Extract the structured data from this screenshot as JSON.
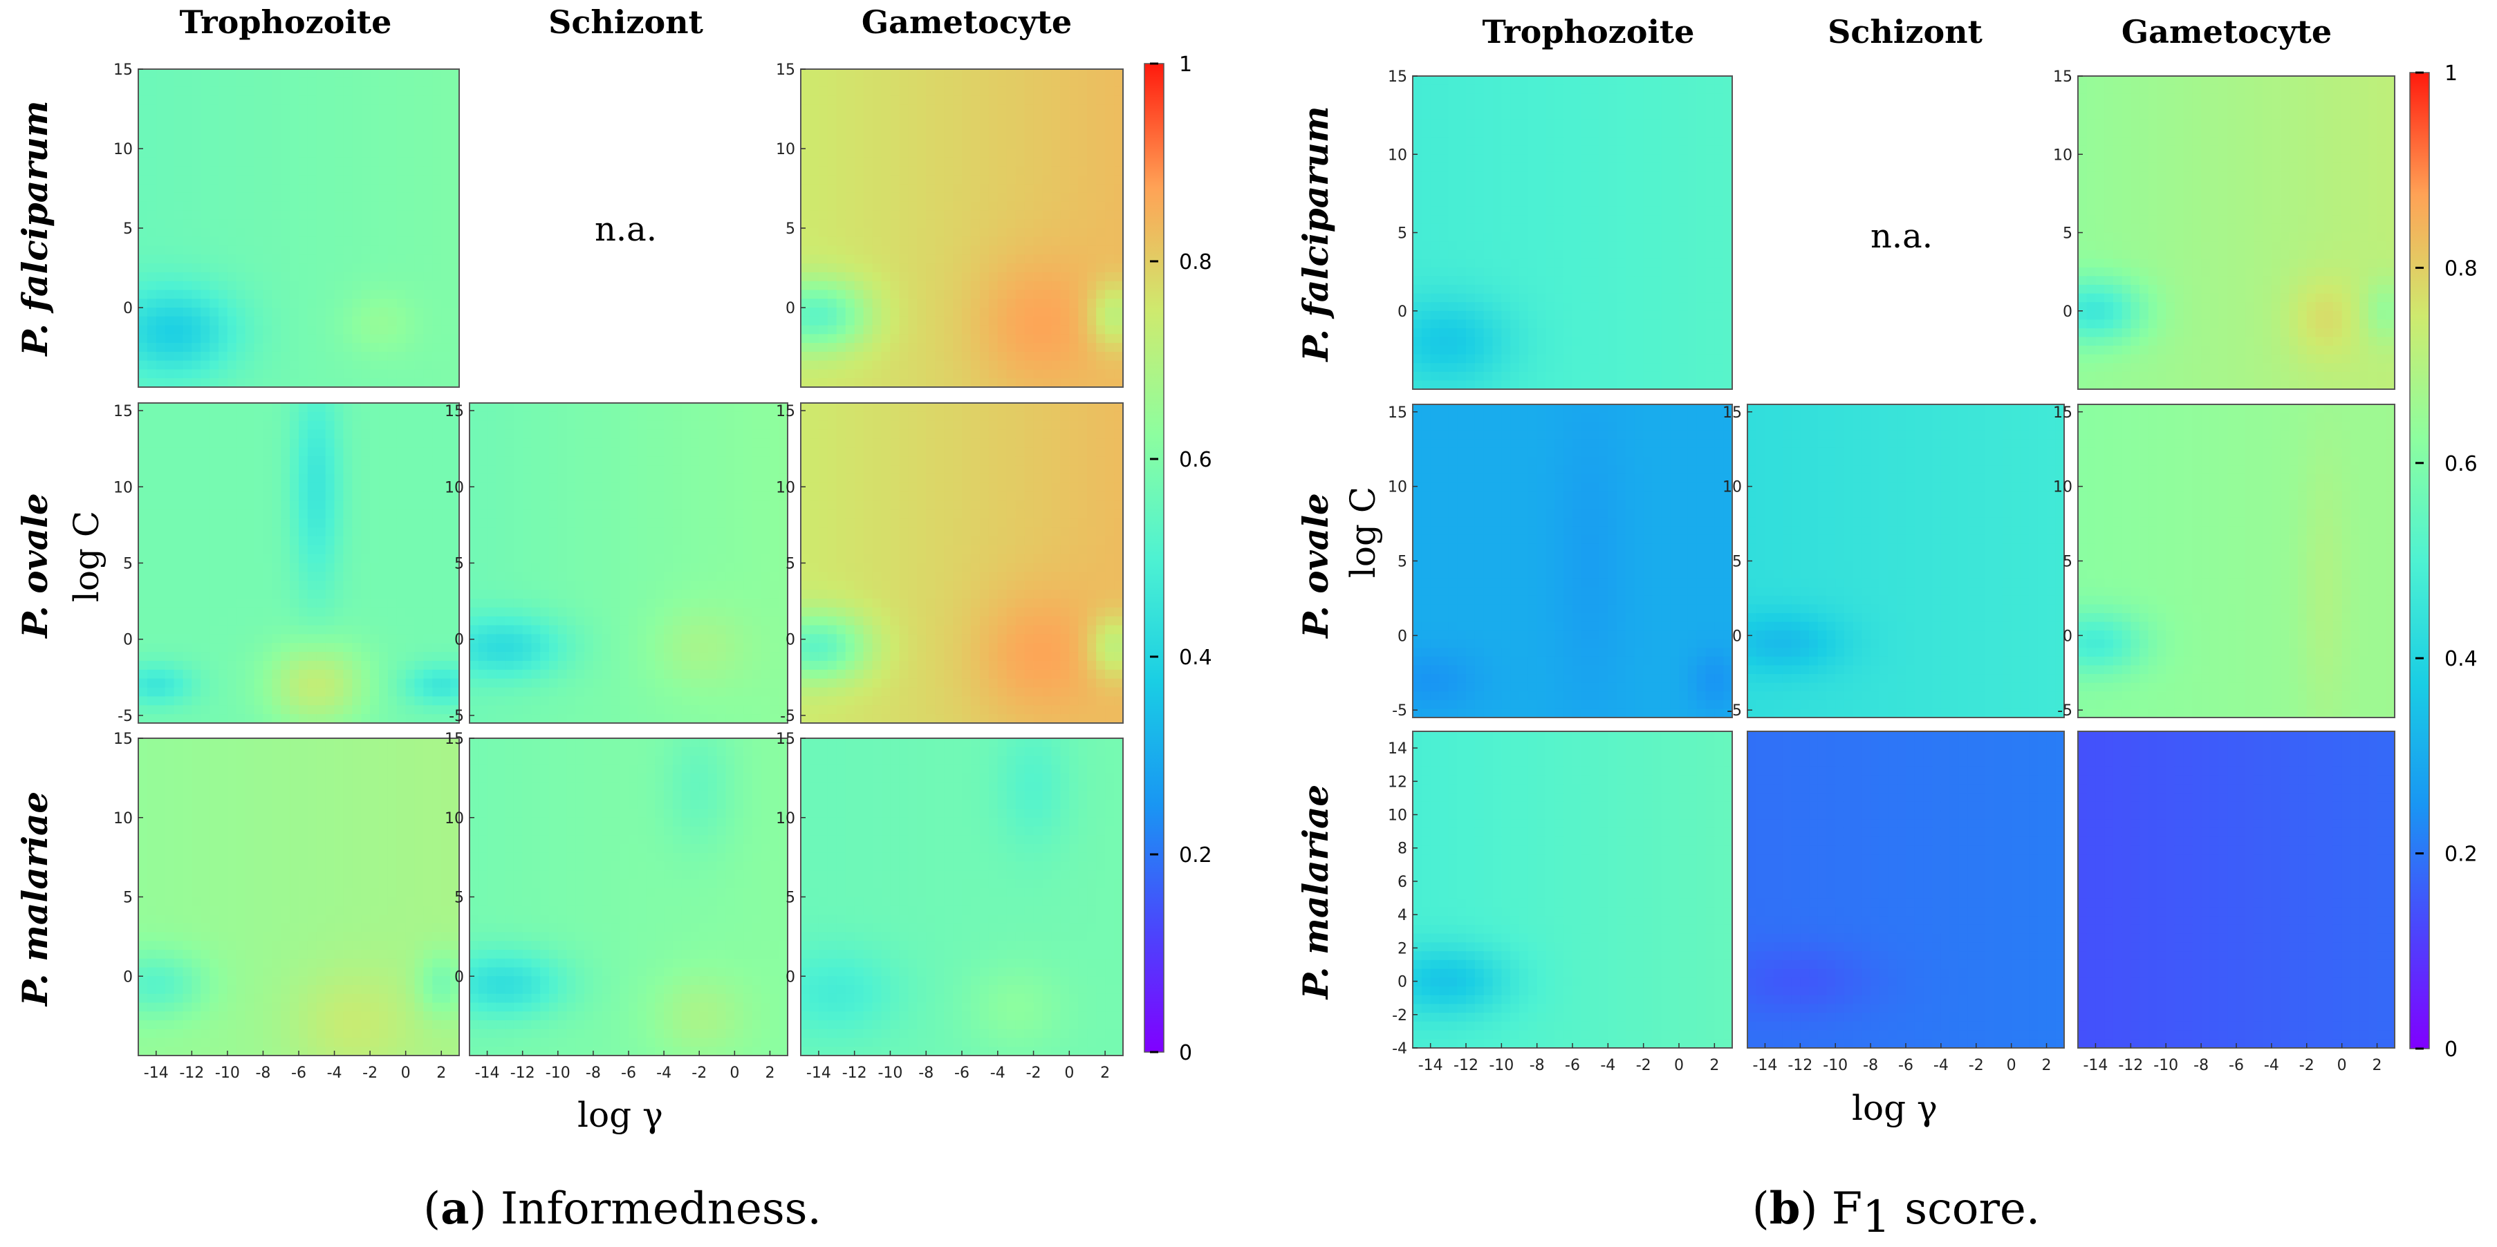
{
  "chart_data": [
    {
      "type": "heatmap",
      "id": "a",
      "caption_label": "a",
      "caption_text": "Informedness.",
      "columns": [
        "Trophozoite",
        "Schizont",
        "Gametocyte"
      ],
      "rows": [
        "P. falciparum",
        "P. ovale",
        "P. malariae"
      ],
      "xlabel": "log γ",
      "ylabel": "log C",
      "xlim": [
        -15,
        3
      ],
      "x_ticks": [
        "-14",
        "-12",
        "-10",
        "-8",
        "-6",
        "-4",
        "-2",
        "0",
        "2"
      ],
      "colorbar": {
        "range": [
          0,
          1
        ],
        "ticks": [
          "0",
          "0.2",
          "0.4",
          "0.6",
          "0.8",
          "1"
        ]
      },
      "na_label": "n.a.",
      "cells": [
        {
          "row": 0,
          "col": 0,
          "base": 0.58,
          "grad": 0.02,
          "y_ticks": [
            "15",
            "10",
            "5",
            "0"
          ],
          "ylim": [
            -5,
            15
          ],
          "features": [
            [
              -13,
              -1.5,
              2.5,
              2,
              -0.18
            ],
            [
              -1.5,
              -1,
              1.5,
              1.5,
              0.05
            ]
          ]
        },
        {
          "row": 0,
          "col": 1,
          "na": true
        },
        {
          "row": 0,
          "col": 2,
          "base": 0.79,
          "grad": 0.04,
          "y_ticks": [
            "15",
            "10",
            "5",
            "0"
          ],
          "ylim": [
            -5,
            15
          ],
          "features": [
            [
              -14,
              -0.5,
              2,
              1.6,
              -0.22
            ],
            [
              -2,
              -1,
              2.5,
              3,
              0.06
            ],
            [
              2.5,
              -0.5,
              1,
              1.5,
              -0.12
            ]
          ]
        },
        {
          "row": 1,
          "col": 0,
          "base": 0.58,
          "grad": 0,
          "y_ticks": [
            "15",
            "10",
            "5",
            "0",
            "-5"
          ],
          "ylim": [
            -5.5,
            15.5
          ],
          "features": [
            [
              -5,
              10,
              1,
              5,
              -0.12
            ],
            [
              -5,
              -3,
              2,
              2,
              0.15
            ],
            [
              -14,
              -3,
              1.5,
              1,
              -0.12
            ],
            [
              2,
              -3,
              1.5,
              1,
              -0.12
            ]
          ]
        },
        {
          "row": 1,
          "col": 1,
          "base": 0.6,
          "grad": 0.03,
          "y_ticks": [
            "15",
            "10",
            "5",
            "0",
            "-5"
          ],
          "ylim": [
            -5.5,
            15.5
          ],
          "features": [
            [
              -13,
              -0.5,
              2.5,
              1.5,
              -0.15
            ],
            [
              -2,
              -0.5,
              2,
              2,
              0.06
            ]
          ]
        },
        {
          "row": 1,
          "col": 2,
          "base": 0.79,
          "grad": 0.04,
          "y_ticks": [
            "15",
            "10",
            "5",
            "0",
            "-5"
          ],
          "ylim": [
            -5.5,
            15.5
          ],
          "features": [
            [
              -14,
              -0.5,
              2,
              1.6,
              -0.22
            ],
            [
              -2,
              -1,
              2.5,
              3,
              0.06
            ],
            [
              2.5,
              -0.5,
              1,
              1.5,
              -0.12
            ]
          ]
        },
        {
          "row": 2,
          "col": 0,
          "base": 0.66,
          "grad": 0.02,
          "y_ticks": [
            "15",
            "10",
            "5",
            "0"
          ],
          "ylim": [
            -5,
            15
          ],
          "features": [
            [
              -14,
              -0.5,
              2,
              1.5,
              -0.12
            ],
            [
              -3,
              -3,
              2.5,
              2.5,
              0.07
            ],
            [
              2,
              -0.5,
              1,
              1.5,
              -0.1
            ]
          ]
        },
        {
          "row": 2,
          "col": 1,
          "base": 0.6,
          "grad": 0.02,
          "y_ticks": [
            "15",
            "10",
            "5",
            "0"
          ],
          "ylim": [
            -5,
            15
          ],
          "features": [
            [
              -13,
              -0.5,
              2.5,
              1.5,
              -0.15
            ],
            [
              -2,
              -2.5,
              2,
              2,
              0.07
            ],
            [
              -2,
              12,
              1.5,
              3,
              -0.06
            ]
          ]
        },
        {
          "row": 2,
          "col": 2,
          "base": 0.57,
          "grad": 0.01,
          "y_ticks": [
            "15",
            "10",
            "5",
            "0"
          ],
          "ylim": [
            -5,
            15
          ],
          "features": [
            [
              -13,
              -1,
              2.5,
              2,
              -0.08
            ],
            [
              -2,
              12,
              1.5,
              3,
              -0.06
            ],
            [
              -3,
              -2,
              2,
              2,
              0.05
            ]
          ]
        }
      ]
    },
    {
      "type": "heatmap",
      "id": "b",
      "caption_label": "b",
      "caption_text": "score.",
      "caption_metric": "F",
      "caption_subscript": "1",
      "columns": [
        "Trophozoite",
        "Schizont",
        "Gametocyte"
      ],
      "rows": [
        "P. falciparum",
        "P. ovale",
        "P. malariae"
      ],
      "xlabel": "log γ",
      "ylabel": "log C",
      "xlim": [
        -15,
        3
      ],
      "x_ticks": [
        "-14",
        "-12",
        "-10",
        "-8",
        "-6",
        "-4",
        "-2",
        "0",
        "2"
      ],
      "colorbar": {
        "range": [
          0,
          1
        ],
        "ticks": [
          "0",
          "0.2",
          "0.4",
          "0.6",
          "0.8",
          "1"
        ]
      },
      "na_label": "n.a.",
      "cells": [
        {
          "row": 0,
          "col": 0,
          "base": 0.5,
          "grad": 0.02,
          "y_ticks": [
            "15",
            "10",
            "5",
            "0"
          ],
          "ylim": [
            -5,
            15
          ],
          "features": [
            [
              -13,
              -2,
              2.5,
              2,
              -0.12
            ]
          ]
        },
        {
          "row": 0,
          "col": 1,
          "na": true
        },
        {
          "row": 0,
          "col": 2,
          "base": 0.68,
          "grad": 0.04,
          "y_ticks": [
            "15",
            "10",
            "5",
            "0"
          ],
          "ylim": [
            -5,
            15
          ],
          "features": [
            [
              -14,
              0,
              2,
              1.5,
              -0.18
            ],
            [
              -1,
              -0.5,
              1.5,
              2,
              0.07
            ],
            [
              2.5,
              0,
              1,
              1.5,
              -0.08
            ]
          ]
        },
        {
          "row": 1,
          "col": 0,
          "base": 0.3,
          "grad": 0,
          "y_ticks": [
            "15",
            "10",
            "5",
            "0",
            "-5"
          ],
          "ylim": [
            -5.5,
            15.5
          ],
          "features": [
            [
              -14,
              -3,
              2,
              1.5,
              -0.05
            ],
            [
              2,
              -3,
              1,
              1.5,
              -0.05
            ],
            [
              -5,
              5,
              1.5,
              8,
              -0.03
            ]
          ]
        },
        {
          "row": 1,
          "col": 1,
          "base": 0.45,
          "grad": 0.02,
          "y_ticks": [
            "15",
            "10",
            "5",
            "0",
            "-5"
          ],
          "ylim": [
            -5.5,
            15.5
          ],
          "features": [
            [
              -13,
              -0.5,
              2.5,
              1.5,
              -0.1
            ]
          ]
        },
        {
          "row": 1,
          "col": 2,
          "base": 0.64,
          "grad": 0.02,
          "y_ticks": [
            "15",
            "10",
            "5",
            "0",
            "-5"
          ],
          "ylim": [
            -5.5,
            15.5
          ],
          "features": [
            [
              -14,
              -0.5,
              2,
              1.5,
              -0.14
            ],
            [
              -1,
              3,
              1,
              7,
              0.04
            ]
          ]
        },
        {
          "row": 2,
          "col": 0,
          "base": 0.52,
          "grad": 0.03,
          "y_ticks": [
            "14",
            "12",
            "10",
            "8",
            "6",
            "4",
            "2",
            "0",
            "-2",
            "-4"
          ],
          "ylim": [
            -4,
            15
          ],
          "features": [
            [
              -13,
              0,
              2.5,
              1.5,
              -0.14
            ]
          ]
        },
        {
          "row": 2,
          "col": 1,
          "base": 0.2,
          "grad": 0.01,
          "y_ticks": [],
          "ylim": [
            -4,
            15
          ],
          "features": [
            [
              -12,
              0,
              3,
              1.5,
              -0.04
            ]
          ]
        },
        {
          "row": 2,
          "col": 2,
          "base": 0.16,
          "grad": 0.02,
          "y_ticks": [],
          "ylim": [
            -4,
            15
          ],
          "features": []
        }
      ]
    }
  ]
}
